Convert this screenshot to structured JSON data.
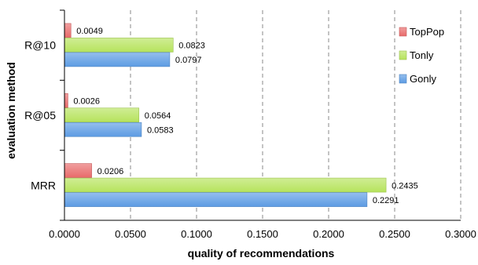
{
  "chart_data": {
    "type": "bar",
    "orientation": "horizontal",
    "title": "",
    "xlabel": "quality of recommendations",
    "ylabel": "evaluation method",
    "categories": [
      "R@10",
      "R@05",
      "MRR"
    ],
    "xlim": [
      0,
      0.3
    ],
    "xticks": [
      0,
      0.05,
      0.1,
      0.15,
      0.2,
      0.25,
      0.3
    ],
    "xtick_labels": [
      "0.0000",
      "0.0500",
      "0.1000",
      "0.1500",
      "0.2000",
      "0.2500",
      "0.3000"
    ],
    "grid": "vertical dashed",
    "legend_position": "right",
    "series": [
      {
        "name": "TopPop",
        "color": "#e86a6a",
        "values": [
          0.0049,
          0.0026,
          0.0206
        ],
        "labels": [
          "0.0049",
          "0.0026",
          "0.0206"
        ]
      },
      {
        "name": "Tonly",
        "color": "#b6e35c",
        "values": [
          0.0823,
          0.0564,
          0.2435
        ],
        "labels": [
          "0.0823",
          "0.0564",
          "0.2435"
        ]
      },
      {
        "name": "Gonly",
        "color": "#5c9be3",
        "values": [
          0.0797,
          0.0583,
          0.2291
        ],
        "labels": [
          "0.0797",
          "0.0583",
          "0.2291"
        ]
      }
    ]
  }
}
